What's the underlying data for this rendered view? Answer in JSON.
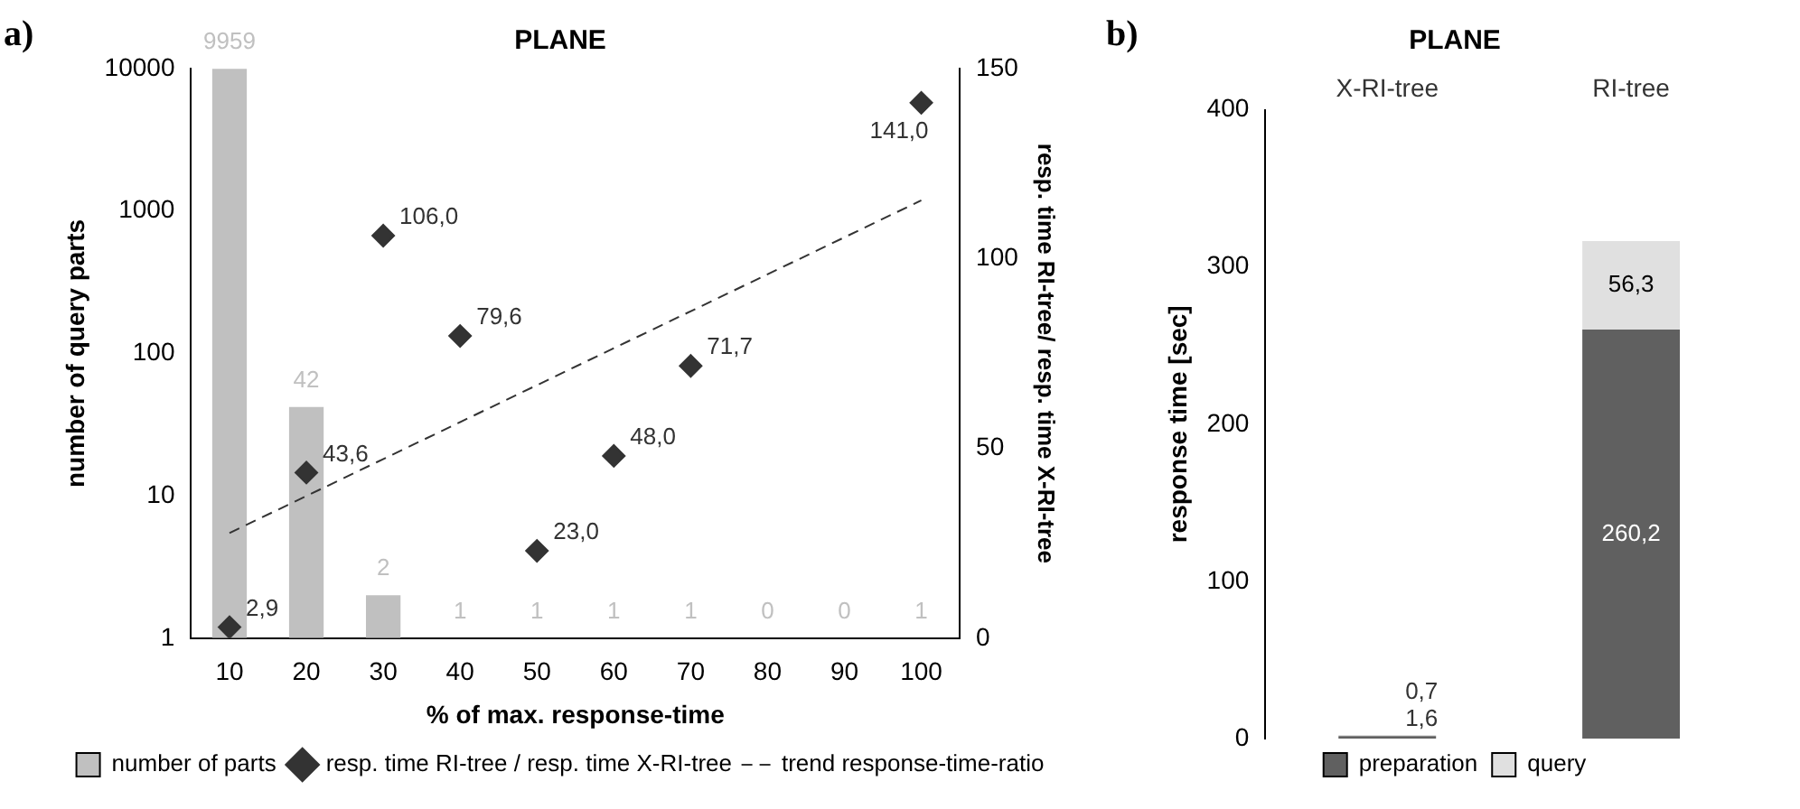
{
  "chart_data": [
    {
      "type": "bar",
      "title": "PLANE",
      "categories": [
        "10",
        "20",
        "30",
        "40",
        "50",
        "60",
        "70",
        "80",
        "90",
        "100"
      ],
      "xlabel": "% of max. response-time",
      "ylabel": "number of query parts",
      "y2label": "resp. time RI-tree/ resp. time X-RI-tree",
      "log": "y",
      "ylim": [
        1,
        10000
      ],
      "yticks": [
        1,
        10,
        100,
        1000,
        10000
      ],
      "y2lim": [
        0,
        150
      ],
      "y2ticks": [
        0,
        50,
        100,
        150
      ],
      "legend": "bottom",
      "grid": false,
      "annotations": [
        "a)"
      ],
      "series": [
        {
          "name": "number of parts",
          "type": "bar",
          "color": "#c0c0c0",
          "values": [
            9959,
            42,
            2,
            1,
            1,
            1,
            1,
            null,
            null,
            1
          ],
          "value_labels": [
            "9959",
            "42",
            "2",
            "1",
            "1",
            "1",
            "1",
            "0",
            "0",
            "1"
          ]
        },
        {
          "name": "resp. time RI-tree / resp. time X-RI-tree",
          "type": "scatter",
          "axis": "y2",
          "marker": "diamond",
          "color": "#333333",
          "x": [
            "10",
            "20",
            "30",
            "40",
            "50",
            "60",
            "70",
            "100"
          ],
          "values": [
            2.9,
            43.6,
            106,
            79.6,
            23,
            48,
            71.7,
            141
          ],
          "value_labels": [
            "2,9",
            "43,6",
            "106,0",
            "79,6",
            "23,0",
            "48,0",
            "71,7",
            "141,0"
          ]
        },
        {
          "name": "trend response-time-ratio",
          "type": "line",
          "axis": "y2",
          "marker": "none",
          "line_style": "dashed",
          "color": "#333333",
          "x": [
            "10",
            "100"
          ],
          "values": [
            27.7,
            115.3
          ]
        }
      ]
    },
    {
      "type": "bar",
      "stacked": true,
      "title": "PLANE",
      "categories": [
        "X-RI-tree",
        "RI-tree"
      ],
      "ylabel": "response time [sec]",
      "ylim": [
        0,
        400
      ],
      "yticks": [
        0,
        100,
        200,
        300,
        400
      ],
      "legend": "bottom",
      "grid": false,
      "annotations": [
        "b)"
      ],
      "series": [
        {
          "name": "preparation",
          "color": "#606060",
          "values": [
            1.6,
            260.2
          ],
          "value_labels": [
            "1,6",
            "260,2"
          ]
        },
        {
          "name": "query",
          "color": "#e0e0e0",
          "values": [
            0.7,
            56.3
          ],
          "value_labels": [
            "0,7",
            "56,3"
          ]
        }
      ]
    }
  ]
}
